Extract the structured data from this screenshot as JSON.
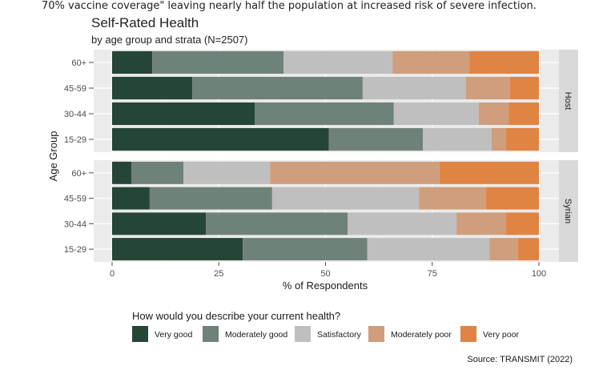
{
  "caption": "70% vaccine coverage\" leaving nearly half the population at increased risk of severe infection.",
  "chart_data": {
    "type": "bar",
    "orientation": "horizontal-stacked",
    "title": "Self-Rated Health",
    "subtitle": "by age group and strata (N=2507)",
    "xlabel": "% of Respondents",
    "ylabel": "Age Group",
    "xlim": [
      0,
      100
    ],
    "xticks": [
      "0",
      "25",
      "50",
      "75",
      "100"
    ],
    "grid": true,
    "legend_title": "How would you describe your current health?",
    "legend_position": "bottom",
    "source": "Source: TRANSMIT (2022)",
    "categories": [
      "Very good",
      "Moderately good",
      "Satisfactory",
      "Moderately poor",
      "Very poor"
    ],
    "colors": [
      "#254537",
      "#6f8279",
      "#bfbfbf",
      "#cf9e7c",
      "#e08443"
    ],
    "panels": [
      {
        "name": "Host",
        "groups": [
          {
            "label": "60+",
            "values": [
              9.4,
              30.8,
              25.5,
              18.0,
              16.3
            ]
          },
          {
            "label": "45-59",
            "values": [
              18.8,
              39.9,
              24.2,
              10.3,
              6.8
            ]
          },
          {
            "label": "30-44",
            "values": [
              33.4,
              32.6,
              19.9,
              7.0,
              7.1
            ]
          },
          {
            "label": "15-29",
            "values": [
              50.8,
              22.0,
              16.1,
              3.4,
              7.7
            ]
          }
        ]
      },
      {
        "name": "Syrian",
        "groups": [
          {
            "label": "60+",
            "values": [
              4.5,
              12.2,
              20.3,
              39.7,
              23.3
            ]
          },
          {
            "label": "45-59",
            "values": [
              8.8,
              28.7,
              34.4,
              15.7,
              12.4
            ]
          },
          {
            "label": "30-44",
            "values": [
              22.0,
              33.2,
              25.5,
              11.6,
              7.7
            ]
          },
          {
            "label": "15-29",
            "values": [
              30.6,
              29.2,
              28.6,
              6.7,
              4.9
            ]
          }
        ]
      }
    ]
  }
}
